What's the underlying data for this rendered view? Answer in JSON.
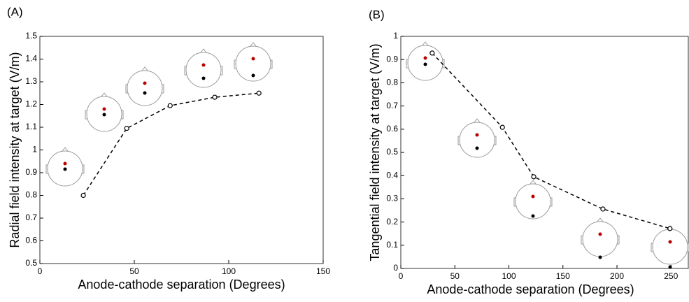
{
  "chart_data": [
    {
      "type": "line",
      "title": "(A)",
      "xlabel": "Anode-cathode separation (Degrees)",
      "ylabel": "Radial field intensity at target (V/m)",
      "xlim": [
        0,
        150
      ],
      "ylim": [
        0.5,
        1.5
      ],
      "xticks": [
        0,
        50,
        100,
        150
      ],
      "yticks": [
        0.5,
        0.6,
        0.7,
        0.8,
        0.9,
        1,
        1.1,
        1.2,
        1.3,
        1.4,
        1.5
      ],
      "series": [
        {
          "color": "#000000",
          "x": [
            23,
            46,
            69,
            92.6,
            116
          ],
          "values": [
            0.8,
            1.095,
            1.195,
            1.232,
            1.25
          ]
        }
      ]
    },
    {
      "type": "line",
      "title": "(B)",
      "xlabel": "Anode-cathode separation (Degrees)",
      "ylabel": "Tangential field intensity at target (V/m)",
      "xlim": [
        0,
        266
      ],
      "ylim": [
        0,
        1
      ],
      "xticks": [
        0,
        50,
        100,
        150,
        200,
        250
      ],
      "yticks": [
        0,
        0.1,
        0.2,
        0.3,
        0.4,
        0.5,
        0.6,
        0.7,
        0.8,
        0.9,
        1
      ],
      "series": [
        {
          "color": "#000000",
          "x": [
            29,
            94,
            123,
            187,
            249
          ],
          "values": [
            0.928,
            0.608,
            0.395,
            0.256,
            0.172
          ]
        }
      ]
    }
  ]
}
